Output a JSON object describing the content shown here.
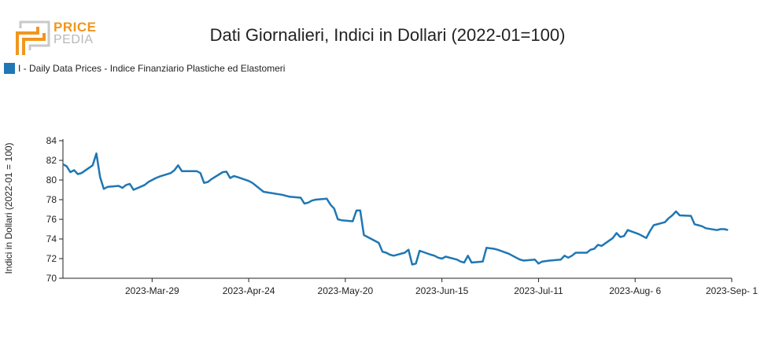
{
  "header": {
    "title": "Dati Giornalieri, Indici in Dollari (2022-01=100)",
    "logo_top": "PRICE",
    "logo_bottom": "PEDIA"
  },
  "colors": {
    "series": "#1f77b4",
    "logo_orange": "#f0961e",
    "logo_gray": "#b8b8b8"
  },
  "chart_data": {
    "type": "line",
    "title": "Dati Giornalieri, Indici in Dollari (2022-01=100)",
    "xlabel": "",
    "ylabel": "Indici in Dollari (2022-01 = 100)",
    "ylim": [
      70,
      84
    ],
    "xlim": [
      "2023-03-05",
      "2023-09-01"
    ],
    "yticks": [
      70,
      72,
      74,
      76,
      78,
      80,
      82,
      84
    ],
    "xticks": [
      {
        "date": "2023-03-29",
        "label": "2023-Mar-29"
      },
      {
        "date": "2023-04-24",
        "label": "2023-Apr-24"
      },
      {
        "date": "2023-05-20",
        "label": "2023-May-20"
      },
      {
        "date": "2023-06-15",
        "label": "2023-Jun-15"
      },
      {
        "date": "2023-07-11",
        "label": "2023-Jul-11"
      },
      {
        "date": "2023-08-06",
        "label": "2023-Aug- 6"
      },
      {
        "date": "2023-09-01",
        "label": "2023-Sep- 1"
      }
    ],
    "grid": false,
    "legend_position": "top-left",
    "series": [
      {
        "name": "I - Daily Data Prices - Indice Finanziario Plastiche ed Elastomeri",
        "points": [
          [
            "2023-03-05",
            81.6
          ],
          [
            "2023-03-06",
            81.4
          ],
          [
            "2023-03-07",
            80.8
          ],
          [
            "2023-03-08",
            81.0
          ],
          [
            "2023-03-09",
            80.6
          ],
          [
            "2023-03-10",
            80.7
          ],
          [
            "2023-03-13",
            81.5
          ],
          [
            "2023-03-14",
            82.7
          ],
          [
            "2023-03-15",
            80.3
          ],
          [
            "2023-03-16",
            79.1
          ],
          [
            "2023-03-17",
            79.3
          ],
          [
            "2023-03-20",
            79.4
          ],
          [
            "2023-03-21",
            79.2
          ],
          [
            "2023-03-22",
            79.5
          ],
          [
            "2023-03-23",
            79.6
          ],
          [
            "2023-03-24",
            79.0
          ],
          [
            "2023-03-27",
            79.5
          ],
          [
            "2023-03-28",
            79.8
          ],
          [
            "2023-03-29",
            80.0
          ],
          [
            "2023-03-30",
            80.2
          ],
          [
            "2023-03-31",
            80.35
          ],
          [
            "2023-04-03",
            80.7
          ],
          [
            "2023-04-04",
            81.0
          ],
          [
            "2023-04-05",
            81.5
          ],
          [
            "2023-04-06",
            80.9
          ],
          [
            "2023-04-10",
            80.9
          ],
          [
            "2023-04-11",
            80.7
          ],
          [
            "2023-04-12",
            79.7
          ],
          [
            "2023-04-13",
            79.8
          ],
          [
            "2023-04-14",
            80.1
          ],
          [
            "2023-04-17",
            80.8
          ],
          [
            "2023-04-18",
            80.85
          ],
          [
            "2023-04-19",
            80.2
          ],
          [
            "2023-04-20",
            80.4
          ],
          [
            "2023-04-21",
            80.3
          ],
          [
            "2023-04-24",
            79.9
          ],
          [
            "2023-04-25",
            79.7
          ],
          [
            "2023-04-26",
            79.4
          ],
          [
            "2023-04-27",
            79.1
          ],
          [
            "2023-04-28",
            78.8
          ],
          [
            "2023-05-03",
            78.5
          ],
          [
            "2023-05-05",
            78.3
          ],
          [
            "2023-05-08",
            78.2
          ],
          [
            "2023-05-09",
            77.6
          ],
          [
            "2023-05-10",
            77.7
          ],
          [
            "2023-05-11",
            77.9
          ],
          [
            "2023-05-12",
            78.0
          ],
          [
            "2023-05-15",
            78.1
          ],
          [
            "2023-05-16",
            77.5
          ],
          [
            "2023-05-17",
            77.1
          ],
          [
            "2023-05-18",
            76.0
          ],
          [
            "2023-05-19",
            75.9
          ],
          [
            "2023-05-22",
            75.8
          ],
          [
            "2023-05-23",
            76.9
          ],
          [
            "2023-05-24",
            76.9
          ],
          [
            "2023-05-25",
            74.4
          ],
          [
            "2023-05-26",
            74.2
          ],
          [
            "2023-05-29",
            73.6
          ],
          [
            "2023-05-30",
            72.7
          ],
          [
            "2023-05-31",
            72.6
          ],
          [
            "2023-06-01",
            72.4
          ],
          [
            "2023-06-02",
            72.3
          ],
          [
            "2023-06-05",
            72.6
          ],
          [
            "2023-06-06",
            72.9
          ],
          [
            "2023-06-07",
            71.4
          ],
          [
            "2023-06-08",
            71.5
          ],
          [
            "2023-06-09",
            72.8
          ],
          [
            "2023-06-12",
            72.4
          ],
          [
            "2023-06-13",
            72.3
          ],
          [
            "2023-06-14",
            72.1
          ],
          [
            "2023-06-15",
            72.0
          ],
          [
            "2023-06-16",
            72.2
          ],
          [
            "2023-06-19",
            71.9
          ],
          [
            "2023-06-20",
            71.7
          ],
          [
            "2023-06-21",
            71.6
          ],
          [
            "2023-06-22",
            72.3
          ],
          [
            "2023-06-23",
            71.6
          ],
          [
            "2023-06-26",
            71.7
          ],
          [
            "2023-06-27",
            73.1
          ],
          [
            "2023-06-28",
            73.05
          ],
          [
            "2023-06-29",
            73.0
          ],
          [
            "2023-06-30",
            72.9
          ],
          [
            "2023-07-03",
            72.5
          ],
          [
            "2023-07-04",
            72.3
          ],
          [
            "2023-07-05",
            72.1
          ],
          [
            "2023-07-06",
            71.9
          ],
          [
            "2023-07-07",
            71.8
          ],
          [
            "2023-07-10",
            71.9
          ],
          [
            "2023-07-11",
            71.5
          ],
          [
            "2023-07-12",
            71.7
          ],
          [
            "2023-07-13",
            71.75
          ],
          [
            "2023-07-14",
            71.8
          ],
          [
            "2023-07-17",
            71.9
          ],
          [
            "2023-07-18",
            72.3
          ],
          [
            "2023-07-19",
            72.1
          ],
          [
            "2023-07-20",
            72.3
          ],
          [
            "2023-07-21",
            72.6
          ],
          [
            "2023-07-24",
            72.6
          ],
          [
            "2023-07-25",
            72.9
          ],
          [
            "2023-07-26",
            73.0
          ],
          [
            "2023-07-27",
            73.4
          ],
          [
            "2023-07-28",
            73.3
          ],
          [
            "2023-07-31",
            74.1
          ],
          [
            "2023-08-01",
            74.6
          ],
          [
            "2023-08-02",
            74.2
          ],
          [
            "2023-08-03",
            74.3
          ],
          [
            "2023-08-04",
            74.9
          ],
          [
            "2023-08-07",
            74.5
          ],
          [
            "2023-08-08",
            74.3
          ],
          [
            "2023-08-09",
            74.1
          ],
          [
            "2023-08-10",
            74.8
          ],
          [
            "2023-08-11",
            75.4
          ],
          [
            "2023-08-14",
            75.7
          ],
          [
            "2023-08-15",
            76.1
          ],
          [
            "2023-08-16",
            76.4
          ],
          [
            "2023-08-17",
            76.8
          ],
          [
            "2023-08-18",
            76.4
          ],
          [
            "2023-08-21",
            76.35
          ],
          [
            "2023-08-22",
            75.5
          ],
          [
            "2023-08-23",
            75.4
          ],
          [
            "2023-08-24",
            75.3
          ],
          [
            "2023-08-25",
            75.1
          ],
          [
            "2023-08-28",
            74.9
          ],
          [
            "2023-08-29",
            75.0
          ],
          [
            "2023-08-30",
            75.0
          ],
          [
            "2023-08-31",
            74.9
          ]
        ]
      }
    ]
  }
}
